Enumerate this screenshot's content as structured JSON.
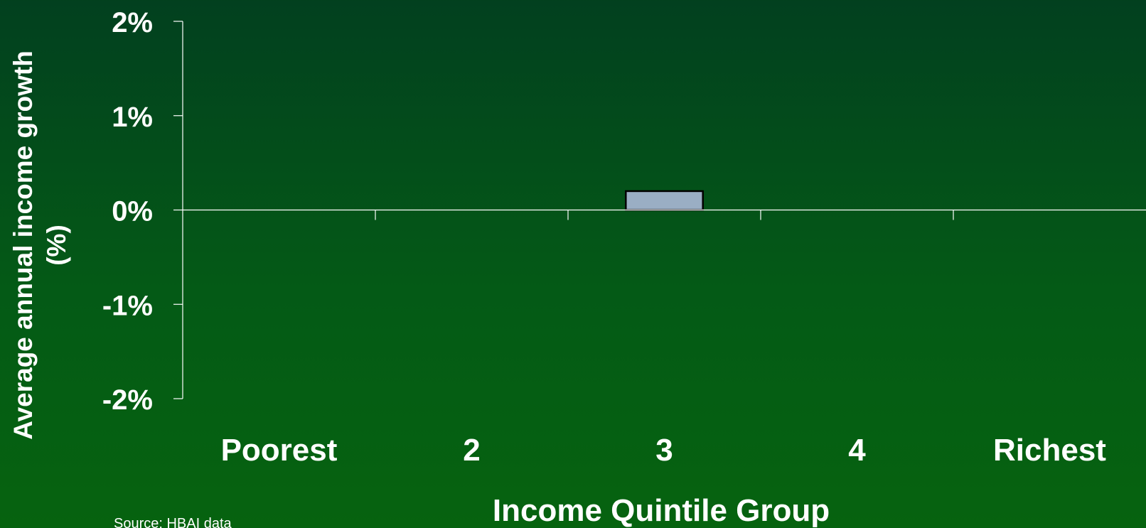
{
  "chart_data": {
    "type": "bar",
    "title": "",
    "xlabel": "Income Quintile Group",
    "ylabel": "Average annual income growth (%)",
    "ylabel_lines": [
      "Average annual income growth",
      "(%)"
    ],
    "categories": [
      "Poorest",
      "2",
      "3",
      "4",
      "Richest"
    ],
    "series": [
      {
        "values": [
          0.0,
          0.0,
          0.2,
          0.0,
          0.0
        ]
      }
    ],
    "ylim": [
      -2,
      2
    ],
    "yticks": [
      2,
      1,
      0,
      -1,
      -2
    ],
    "ytick_labels": [
      "2%",
      "1%",
      "0%",
      "-1%",
      "-2%"
    ],
    "grid": false,
    "bar_color": "#9aaec4",
    "bar_edge_color": "#000000",
    "axis_color": "#ffffff"
  },
  "footer": {
    "source": "Source: HBAI data"
  }
}
